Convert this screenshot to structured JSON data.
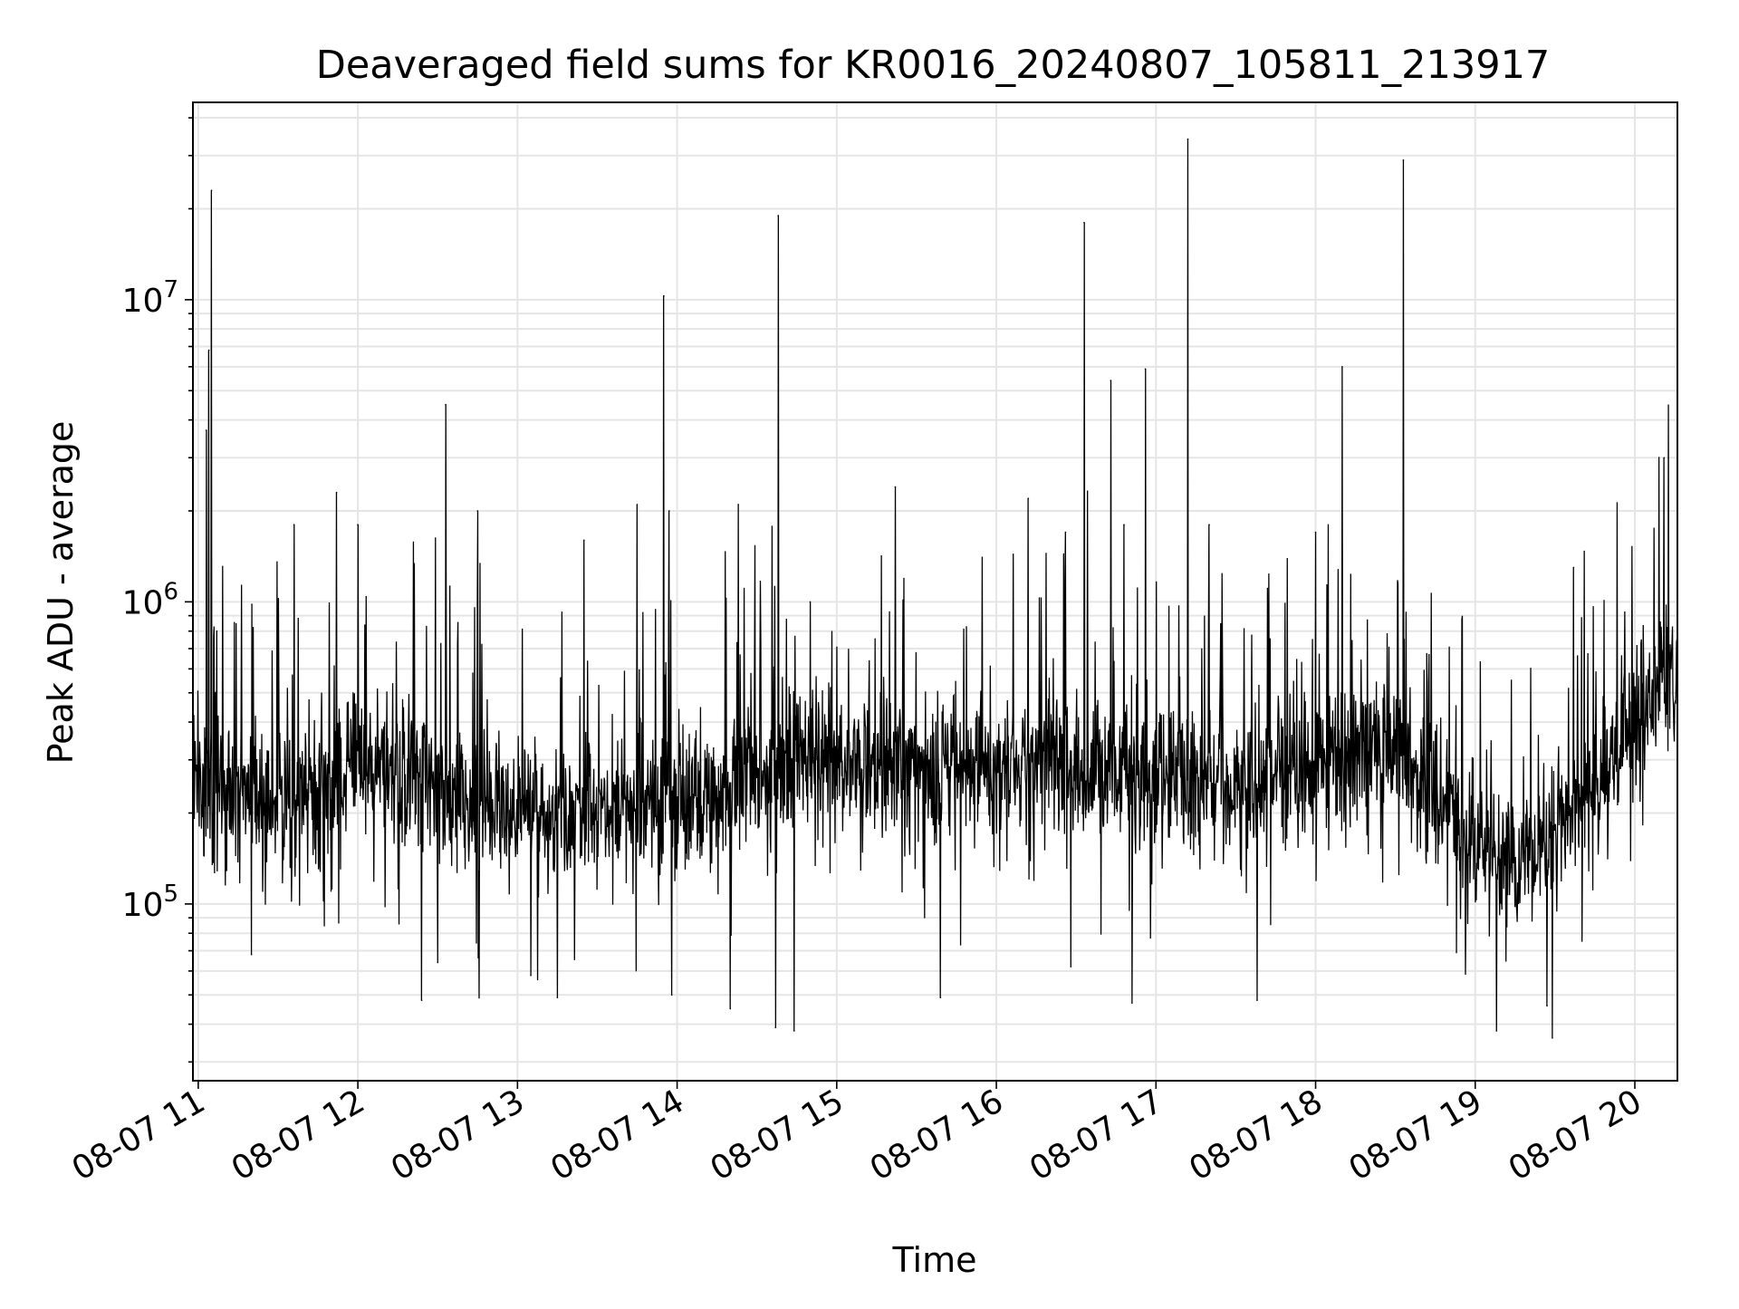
{
  "chart_data": {
    "type": "line",
    "title": "Deaveraged field sums for KR0016_20240807_105811_213917",
    "xlabel": "Time",
    "ylabel": "Peak ADU - average",
    "y_scale": "log",
    "ylim": [
      26000,
      45000000
    ],
    "xlim": [
      "2024-08-07 10:58",
      "2024-08-07 20:16"
    ],
    "grid": true,
    "grid_color": "#e5e5e5",
    "line_color": "#000000",
    "x_ticks": [
      {
        "t": "2024-08-07 11:00",
        "label": "08-07 11"
      },
      {
        "t": "2024-08-07 12:00",
        "label": "08-07 12"
      },
      {
        "t": "2024-08-07 13:00",
        "label": "08-07 13"
      },
      {
        "t": "2024-08-07 14:00",
        "label": "08-07 14"
      },
      {
        "t": "2024-08-07 15:00",
        "label": "08-07 15"
      },
      {
        "t": "2024-08-07 16:00",
        "label": "08-07 16"
      },
      {
        "t": "2024-08-07 17:00",
        "label": "08-07 17"
      },
      {
        "t": "2024-08-07 18:00",
        "label": "08-07 18"
      },
      {
        "t": "2024-08-07 19:00",
        "label": "08-07 19"
      },
      {
        "t": "2024-08-07 20:00",
        "label": "08-07 20"
      }
    ],
    "y_ticks": [
      {
        "value": 100000,
        "base": "10",
        "exp": "5"
      },
      {
        "value": 1000000,
        "base": "10",
        "exp": "6"
      },
      {
        "value": 10000000,
        "base": "10",
        "exp": "7"
      }
    ],
    "series": [
      {
        "baseline": [
          [
            "2024-08-07 10:58",
            330000
          ],
          [
            "2024-08-07 11:05",
            240000
          ],
          [
            "2024-08-07 11:30",
            210000
          ],
          [
            "2024-08-07 11:55",
            280000
          ],
          [
            "2024-08-07 12:20",
            250000
          ],
          [
            "2024-08-07 12:50",
            210000
          ],
          [
            "2024-08-07 13:20",
            200000
          ],
          [
            "2024-08-07 13:50",
            210000
          ],
          [
            "2024-08-07 14:20",
            250000
          ],
          [
            "2024-08-07 14:50",
            300000
          ],
          [
            "2024-08-07 15:20",
            290000
          ],
          [
            "2024-08-07 15:50",
            290000
          ],
          [
            "2024-08-07 16:20",
            300000
          ],
          [
            "2024-08-07 16:50",
            280000
          ],
          [
            "2024-08-07 17:20",
            260000
          ],
          [
            "2024-08-07 17:45",
            240000
          ],
          [
            "2024-08-07 18:00",
            300000
          ],
          [
            "2024-08-07 18:25",
            320000
          ],
          [
            "2024-08-07 18:45",
            230000
          ],
          [
            "2024-08-07 19:00",
            160000
          ],
          [
            "2024-08-07 19:15",
            140000
          ],
          [
            "2024-08-07 19:35",
            190000
          ],
          [
            "2024-08-07 19:55",
            330000
          ],
          [
            "2024-08-07 20:10",
            560000
          ],
          [
            "2024-08-07 20:16",
            520000
          ]
        ],
        "peaks": [
          [
            "2024-08-07 11:03",
            3700000
          ],
          [
            "2024-08-07 11:04",
            6800000
          ],
          [
            "2024-08-07 11:05",
            23000000
          ],
          [
            "2024-08-07 11:07",
            800000
          ],
          [
            "2024-08-07 11:36",
            1800000
          ],
          [
            "2024-08-07 11:52",
            2300000
          ],
          [
            "2024-08-07 12:00",
            1800000
          ],
          [
            "2024-08-07 12:33",
            4500000
          ],
          [
            "2024-08-07 12:45",
            2000000
          ],
          [
            "2024-08-07 13:25",
            1600000
          ],
          [
            "2024-08-07 13:45",
            2100000
          ],
          [
            "2024-08-07 13:55",
            10300000
          ],
          [
            "2024-08-07 13:57",
            2000000
          ],
          [
            "2024-08-07 14:23",
            2100000
          ],
          [
            "2024-08-07 14:38",
            19000000
          ],
          [
            "2024-08-07 14:50",
            1000000
          ],
          [
            "2024-08-07 15:22",
            2400000
          ],
          [
            "2024-08-07 16:12",
            2200000
          ],
          [
            "2024-08-07 16:26",
            1700000
          ],
          [
            "2024-08-07 16:33",
            18000000
          ],
          [
            "2024-08-07 16:43",
            5400000
          ],
          [
            "2024-08-07 16:48",
            1800000
          ],
          [
            "2024-08-07 16:56",
            5900000
          ],
          [
            "2024-08-07 17:12",
            34000000
          ],
          [
            "2024-08-07 17:20",
            1800000
          ],
          [
            "2024-08-07 18:00",
            1700000
          ],
          [
            "2024-08-07 18:10",
            6000000
          ],
          [
            "2024-08-07 18:33",
            29000000
          ],
          [
            "2024-08-07 19:37",
            1300000
          ],
          [
            "2024-08-07 20:11",
            3000000
          ]
        ],
        "dips": [
          [
            "2024-08-07 11:20",
            68000
          ],
          [
            "2024-08-07 12:24",
            48000
          ],
          [
            "2024-08-07 12:30",
            64000
          ],
          [
            "2024-08-07 13:05",
            58000
          ],
          [
            "2024-08-07 13:15",
            49000
          ],
          [
            "2024-08-07 13:58",
            50000
          ],
          [
            "2024-08-07 14:20",
            45000
          ],
          [
            "2024-08-07 14:37",
            39000
          ],
          [
            "2024-08-07 14:44",
            38000
          ],
          [
            "2024-08-07 15:39",
            49000
          ],
          [
            "2024-08-07 16:28",
            62000
          ],
          [
            "2024-08-07 16:51",
            47000
          ],
          [
            "2024-08-07 17:38",
            48000
          ],
          [
            "2024-08-07 19:08",
            38000
          ],
          [
            "2024-08-07 19:27",
            46000
          ],
          [
            "2024-08-07 19:29",
            36000
          ]
        ]
      }
    ]
  }
}
